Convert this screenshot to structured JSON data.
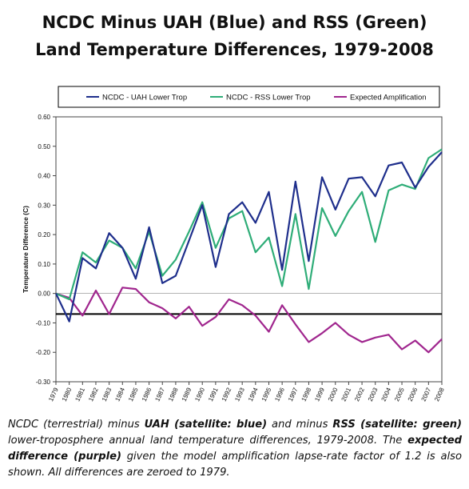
{
  "title_lines": [
    "NCDC Minus UAH (Blue) and RSS (Green)",
    "Land Temperature Differences, 1979-2008"
  ],
  "caption": {
    "p1": "NCDC (terrestrial) minus ",
    "b1": "UAH (satellite: blue)",
    "p2": " and minus ",
    "b2": "RSS (satellite: green)",
    "p3": " lower-troposphere annual land temperature differences, 1979-2008. The ",
    "b3": "expected difference (purple)",
    "p4": " given the model amplification lapse-rate factor of 1.2 is also shown. All differences are zeroed to 1979."
  },
  "chart_data": {
    "type": "line",
    "ylabel": "Temperature Difference (C)",
    "ylim": [
      -0.3,
      0.6
    ],
    "yticks": [
      "0.60",
      "0.50",
      "0.40",
      "0.30",
      "0.20",
      "0.10",
      "0.00",
      "-0.10",
      "-0.20",
      "-0.30"
    ],
    "x": [
      "1979",
      "1980",
      "1981",
      "1982",
      "1983",
      "1984",
      "1985",
      "1986",
      "1987",
      "1988",
      "1989",
      "1990",
      "1991",
      "1992",
      "1993",
      "1994",
      "1995",
      "1996",
      "1997",
      "1998",
      "1999",
      "2000",
      "2001",
      "2002",
      "2003",
      "2004",
      "2005",
      "2006",
      "2007",
      "2008"
    ],
    "series": [
      {
        "name": "NCDC - UAH Lower Trop",
        "color": "#1f2f8c",
        "values": [
          0.0,
          -0.095,
          0.12,
          0.085,
          0.205,
          0.155,
          0.05,
          0.225,
          0.035,
          0.06,
          0.18,
          0.3,
          0.09,
          0.27,
          0.31,
          0.24,
          0.345,
          0.08,
          0.38,
          0.11,
          0.395,
          0.285,
          0.39,
          0.395,
          0.33,
          0.435,
          0.445,
          0.36,
          0.43,
          0.48
        ]
      },
      {
        "name": "NCDC - RSS Lower Trop",
        "color": "#2fad78",
        "values": [
          0.0,
          -0.02,
          0.14,
          0.105,
          0.18,
          0.155,
          0.085,
          0.21,
          0.06,
          0.115,
          0.21,
          0.31,
          0.155,
          0.255,
          0.28,
          0.14,
          0.19,
          0.025,
          0.27,
          0.015,
          0.29,
          0.195,
          0.28,
          0.345,
          0.175,
          0.35,
          0.37,
          0.355,
          0.46,
          0.49
        ]
      },
      {
        "name": "Expected Amplification",
        "color": "#a0268e",
        "values": [
          0.0,
          -0.015,
          -0.075,
          0.01,
          -0.07,
          0.02,
          0.015,
          -0.03,
          -0.05,
          -0.085,
          -0.045,
          -0.11,
          -0.08,
          -0.02,
          -0.04,
          -0.075,
          -0.13,
          -0.04,
          -0.105,
          -0.165,
          -0.135,
          -0.1,
          -0.14,
          -0.165,
          -0.15,
          -0.14,
          -0.19,
          -0.16,
          -0.2,
          -0.155
        ]
      }
    ],
    "reference_line": -0.07,
    "legend_position": "top"
  }
}
